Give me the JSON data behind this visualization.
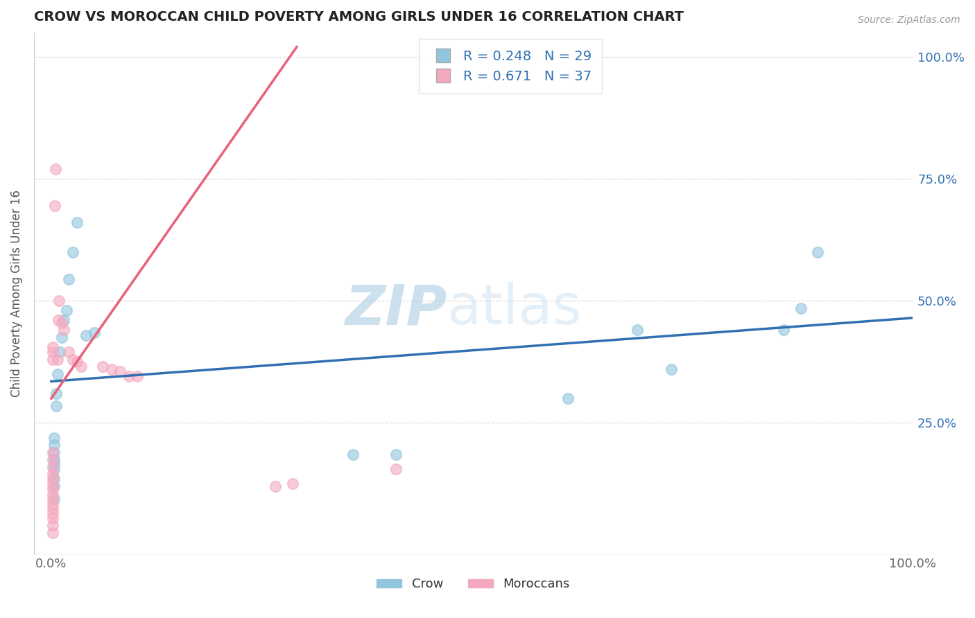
{
  "title": "CROW VS MOROCCAN CHILD POVERTY AMONG GIRLS UNDER 16 CORRELATION CHART",
  "source_text": "Source: ZipAtlas.com",
  "ylabel": "Child Poverty Among Girls Under 16",
  "xlim": [
    -0.02,
    1.0
  ],
  "ylim": [
    -0.02,
    1.05
  ],
  "watermark_zip": "ZIP",
  "watermark_atlas": "atlas",
  "legend_r1": "R = 0.248",
  "legend_n1": "N = 29",
  "legend_r2": "R = 0.671",
  "legend_n2": "N = 37",
  "crow_color": "#92c5de",
  "moroccan_color": "#f4a9be",
  "crow_line_color": "#3070b3",
  "moroccan_line_color": "#e8607a",
  "background_color": "#ffffff",
  "grid_color": "#cccccc",
  "right_tick_color": "#3070b3",
  "crow_points": [
    [
      0.003,
      0.095
    ],
    [
      0.003,
      0.12
    ],
    [
      0.003,
      0.135
    ],
    [
      0.003,
      0.155
    ],
    [
      0.003,
      0.165
    ],
    [
      0.003,
      0.175
    ],
    [
      0.003,
      0.19
    ],
    [
      0.003,
      0.205
    ],
    [
      0.003,
      0.22
    ],
    [
      0.006,
      0.285
    ],
    [
      0.006,
      0.31
    ],
    [
      0.007,
      0.35
    ],
    [
      0.01,
      0.395
    ],
    [
      0.012,
      0.425
    ],
    [
      0.015,
      0.46
    ],
    [
      0.018,
      0.48
    ],
    [
      0.02,
      0.545
    ],
    [
      0.025,
      0.6
    ],
    [
      0.03,
      0.66
    ],
    [
      0.04,
      0.43
    ],
    [
      0.05,
      0.435
    ],
    [
      0.35,
      0.185
    ],
    [
      0.4,
      0.185
    ],
    [
      0.6,
      0.3
    ],
    [
      0.68,
      0.44
    ],
    [
      0.72,
      0.36
    ],
    [
      0.85,
      0.44
    ],
    [
      0.87,
      0.485
    ],
    [
      0.89,
      0.6
    ]
  ],
  "moroccan_points": [
    [
      0.002,
      0.025
    ],
    [
      0.002,
      0.04
    ],
    [
      0.002,
      0.055
    ],
    [
      0.002,
      0.065
    ],
    [
      0.002,
      0.075
    ],
    [
      0.002,
      0.085
    ],
    [
      0.002,
      0.095
    ],
    [
      0.002,
      0.105
    ],
    [
      0.002,
      0.115
    ],
    [
      0.002,
      0.125
    ],
    [
      0.002,
      0.135
    ],
    [
      0.002,
      0.145
    ],
    [
      0.002,
      0.16
    ],
    [
      0.002,
      0.175
    ],
    [
      0.002,
      0.19
    ],
    [
      0.002,
      0.38
    ],
    [
      0.002,
      0.395
    ],
    [
      0.002,
      0.405
    ],
    [
      0.004,
      0.695
    ],
    [
      0.005,
      0.77
    ],
    [
      0.007,
      0.38
    ],
    [
      0.008,
      0.46
    ],
    [
      0.009,
      0.5
    ],
    [
      0.012,
      0.455
    ],
    [
      0.015,
      0.44
    ],
    [
      0.02,
      0.395
    ],
    [
      0.025,
      0.38
    ],
    [
      0.03,
      0.375
    ],
    [
      0.035,
      0.365
    ],
    [
      0.06,
      0.365
    ],
    [
      0.07,
      0.36
    ],
    [
      0.08,
      0.355
    ],
    [
      0.09,
      0.345
    ],
    [
      0.1,
      0.345
    ],
    [
      0.26,
      0.12
    ],
    [
      0.28,
      0.125
    ],
    [
      0.4,
      0.155
    ]
  ],
  "crow_trend_x": [
    0.0,
    1.0
  ],
  "crow_trend_y": [
    0.335,
    0.465
  ],
  "moroccan_trend_x": [
    0.0,
    0.285
  ],
  "moroccan_trend_y": [
    0.3,
    1.02
  ],
  "y_ticks": [
    0.25,
    0.5,
    0.75,
    1.0
  ],
  "y_tick_labels": [
    "25.0%",
    "50.0%",
    "75.0%",
    "100.0%"
  ],
  "x_tick_labels_pos": [
    0.0,
    1.0
  ],
  "x_tick_labels": [
    "0.0%",
    "100.0%"
  ]
}
